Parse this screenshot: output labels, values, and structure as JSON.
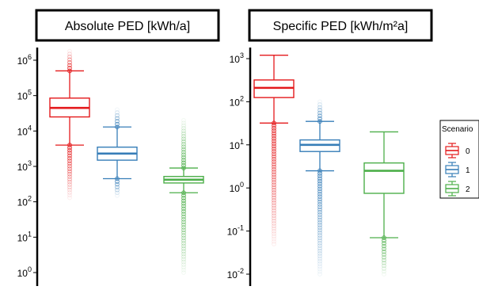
{
  "chart_data": [
    {
      "type": "boxplot",
      "title": "Absolute PED [kWh/a]",
      "yscale": "log",
      "ylim": [
        1,
        2000000
      ],
      "yticks": [
        {
          "value": 1,
          "label": "10",
          "exp": "0"
        },
        {
          "value": 10,
          "label": "10",
          "exp": "1"
        },
        {
          "value": 100,
          "label": "10",
          "exp": "2"
        },
        {
          "value": 1000,
          "label": "10",
          "exp": "3"
        },
        {
          "value": 10000,
          "label": "10",
          "exp": "4"
        },
        {
          "value": 100000,
          "label": "10",
          "exp": "5"
        },
        {
          "value": 1000000,
          "label": "10",
          "exp": "6"
        }
      ],
      "series": [
        {
          "scenario": "0",
          "color": "#e41a1c",
          "whisker_low": 4000,
          "q1": 25000,
          "median": 45000,
          "q3": 85000,
          "whisker_high": 500000,
          "outlier_range": [
            [
              130,
              4000
            ],
            [
              500000,
              1800000
            ]
          ]
        },
        {
          "scenario": "1",
          "color": "#377eb8",
          "whisker_low": 450,
          "q1": 1500,
          "median": 2300,
          "q3": 3500,
          "whisker_high": 13000,
          "outlier_range": [
            [
              150,
              450
            ],
            [
              13000,
              40000
            ]
          ]
        },
        {
          "scenario": "2",
          "color": "#4daf4a",
          "whisker_low": 180,
          "q1": 340,
          "median": 420,
          "q3": 520,
          "whisker_high": 900,
          "outlier_range": [
            [
              1,
              180
            ],
            [
              900,
              20000
            ]
          ]
        }
      ]
    },
    {
      "type": "boxplot",
      "title": "Specific PED [kWh/m²a]",
      "yscale": "log",
      "ylim": [
        0.01,
        2000
      ],
      "yticks": [
        {
          "value": 0.01,
          "label": "10",
          "exp": "-2"
        },
        {
          "value": 0.1,
          "label": "10",
          "exp": "-1"
        },
        {
          "value": 1,
          "label": "10",
          "exp": "0"
        },
        {
          "value": 10,
          "label": "10",
          "exp": "1"
        },
        {
          "value": 100,
          "label": "10",
          "exp": "2"
        },
        {
          "value": 1000,
          "label": "10",
          "exp": "3"
        }
      ],
      "series": [
        {
          "scenario": "0",
          "color": "#e41a1c",
          "whisker_low": 32,
          "q1": 125,
          "median": 210,
          "q3": 320,
          "whisker_high": 1200,
          "outlier_range": [
            [
              0.05,
              32
            ]
          ]
        },
        {
          "scenario": "1",
          "color": "#377eb8",
          "whisker_low": 2.5,
          "q1": 7,
          "median": 10,
          "q3": 13,
          "whisker_high": 35,
          "outlier_range": [
            [
              0.01,
              2.5
            ],
            [
              35,
              100
            ]
          ]
        },
        {
          "scenario": "2",
          "color": "#4daf4a",
          "whisker_low": 0.07,
          "q1": 0.75,
          "median": 2.5,
          "q3": 3.8,
          "whisker_high": 20,
          "outlier_range": [
            [
              0.01,
              0.07
            ]
          ]
        }
      ]
    }
  ],
  "legend": {
    "title": "Scenario",
    "items": [
      {
        "label": "0",
        "color": "#e41a1c"
      },
      {
        "label": "1",
        "color": "#377eb8"
      },
      {
        "label": "2",
        "color": "#4daf4a"
      }
    ]
  }
}
